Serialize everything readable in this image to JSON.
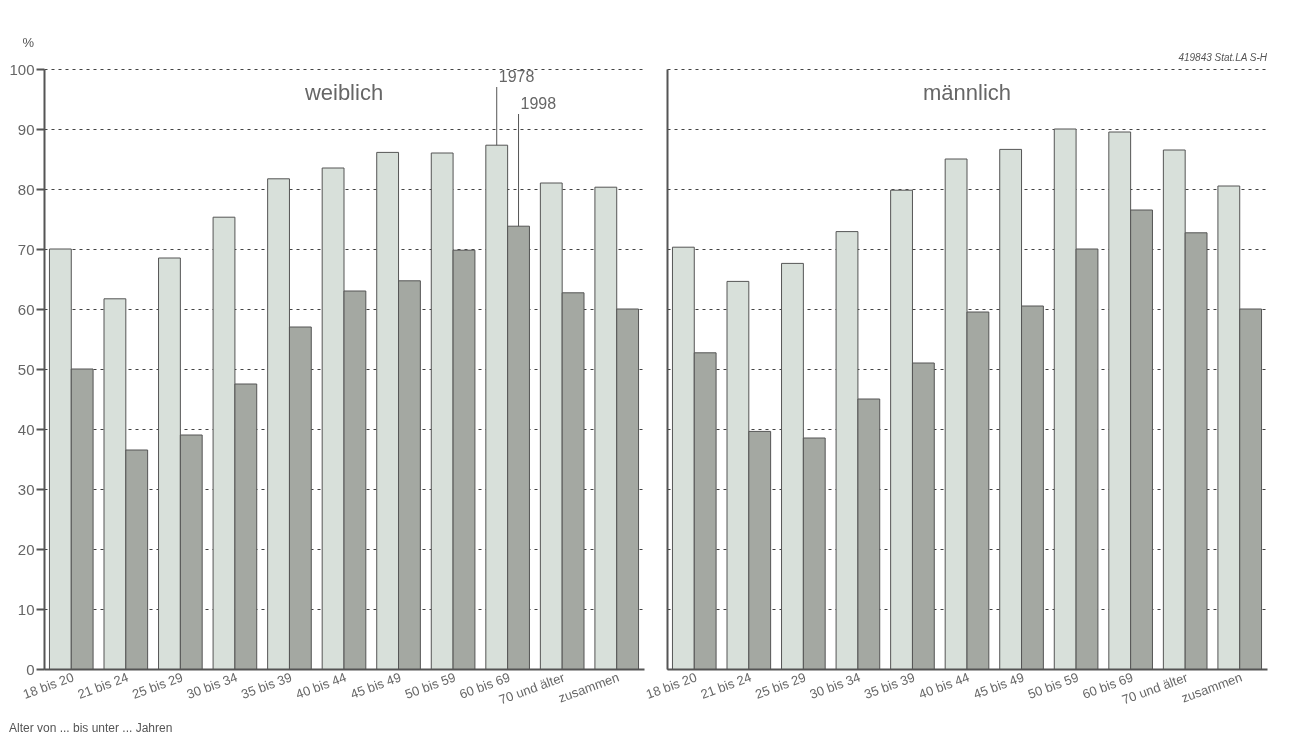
{
  "chart_data": [
    {
      "type": "bar",
      "title": "weiblich",
      "ylabel": "%",
      "xlabel": "Alter von ... bis unter ... Jahren",
      "categories": [
        "18 bis 20",
        "21 bis 24",
        "25 bis 29",
        "30 bis 34",
        "35 bis 39",
        "40 bis 44",
        "45 bis 49",
        "50 bis 59",
        "60 bis 69",
        "70 und älter",
        "zusammen"
      ],
      "series": [
        {
          "name": "1978",
          "color": "#d8e0da",
          "values": [
            70,
            61.7,
            68.5,
            75.3,
            81.7,
            83.5,
            86.1,
            86,
            87.3,
            81,
            80.3
          ]
        },
        {
          "name": "1998",
          "color": "#a4a8a2",
          "values": [
            50,
            36.5,
            39,
            47.5,
            57,
            63,
            64.7,
            69.8,
            73.8,
            62.7,
            60
          ]
        }
      ],
      "ylim": [
        0,
        100
      ],
      "yticks": [
        0,
        10,
        20,
        30,
        40,
        50,
        60,
        70,
        80,
        90,
        100
      ],
      "grid": "y",
      "legend": false
    },
    {
      "type": "bar",
      "title": "männlich",
      "categories": [
        "18 bis 20",
        "21 bis 24",
        "25 bis 29",
        "30 bis 34",
        "35 bis 39",
        "40 bis 44",
        "45 bis 49",
        "50 bis 59",
        "60 bis 69",
        "70 und älter",
        "zusammen"
      ],
      "series": [
        {
          "color": "#d8e0da",
          "values": [
            70.3,
            64.6,
            67.6,
            72.9,
            79.8,
            85,
            86.6,
            90,
            89.5,
            86.5,
            80.5
          ]
        },
        {
          "color": "#a4a8a2",
          "values": [
            52.7,
            39.6,
            38.5,
            45,
            51,
            59.5,
            60.5,
            70,
            76.5,
            72.7,
            60
          ]
        }
      ],
      "ylim": [
        0,
        100
      ],
      "yticks": [
        0,
        10,
        20,
        30,
        40,
        50,
        60,
        70,
        80,
        90,
        100
      ],
      "grid": "y",
      "legend": false,
      "tick_labels": "x",
      "annotations": [
        "419843 Stat.LA S-H"
      ]
    }
  ]
}
